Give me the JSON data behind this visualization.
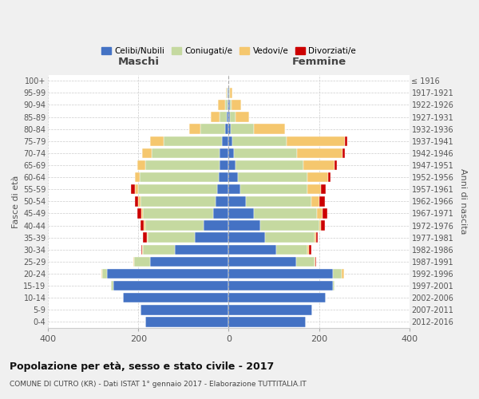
{
  "age_groups": [
    "0-4",
    "5-9",
    "10-14",
    "15-19",
    "20-24",
    "25-29",
    "30-34",
    "35-39",
    "40-44",
    "45-49",
    "50-54",
    "55-59",
    "60-64",
    "65-69",
    "70-74",
    "75-79",
    "80-84",
    "85-89",
    "90-94",
    "95-99",
    "100+"
  ],
  "birth_years": [
    "2012-2016",
    "2007-2011",
    "2002-2006",
    "1997-2001",
    "1992-1996",
    "1987-1991",
    "1982-1986",
    "1977-1981",
    "1972-1976",
    "1967-1971",
    "1962-1966",
    "1957-1961",
    "1952-1956",
    "1947-1951",
    "1942-1946",
    "1937-1941",
    "1932-1936",
    "1927-1931",
    "1922-1926",
    "1917-1921",
    "≤ 1916"
  ],
  "maschi_celibe": [
    185,
    195,
    235,
    255,
    270,
    175,
    120,
    75,
    55,
    35,
    30,
    25,
    22,
    20,
    20,
    15,
    8,
    5,
    3,
    2,
    0
  ],
  "maschi_coniugati": [
    0,
    0,
    0,
    5,
    10,
    35,
    70,
    105,
    130,
    155,
    165,
    175,
    175,
    165,
    150,
    130,
    55,
    15,
    5,
    2,
    0
  ],
  "maschi_vedovi": [
    0,
    0,
    0,
    0,
    2,
    2,
    2,
    2,
    3,
    4,
    5,
    8,
    10,
    18,
    22,
    30,
    25,
    20,
    15,
    2,
    0
  ],
  "maschi_divorziati": [
    0,
    0,
    0,
    0,
    0,
    0,
    2,
    8,
    8,
    8,
    8,
    8,
    0,
    0,
    0,
    0,
    0,
    0,
    0,
    0,
    0
  ],
  "femmine_celibe": [
    170,
    185,
    215,
    230,
    230,
    150,
    105,
    80,
    70,
    55,
    38,
    25,
    20,
    15,
    12,
    8,
    5,
    3,
    2,
    1,
    0
  ],
  "femmine_coniugate": [
    0,
    0,
    0,
    5,
    20,
    40,
    70,
    110,
    130,
    140,
    145,
    150,
    155,
    150,
    140,
    120,
    50,
    12,
    5,
    2,
    0
  ],
  "femmine_vedove": [
    0,
    0,
    0,
    0,
    5,
    2,
    3,
    3,
    5,
    12,
    18,
    30,
    45,
    70,
    100,
    130,
    70,
    30,
    20,
    5,
    0
  ],
  "femmine_divorziate": [
    0,
    0,
    0,
    0,
    0,
    2,
    5,
    5,
    8,
    12,
    12,
    10,
    5,
    5,
    5,
    5,
    0,
    0,
    0,
    0,
    0
  ],
  "color_celibe": "#4472c4",
  "color_coniugati": "#c5d9a0",
  "color_vedovi": "#f5c76e",
  "color_divorziati": "#cc0000",
  "title": "Popolazione per età, sesso e stato civile - 2017",
  "subtitle": "COMUNE DI CUTRO (KR) - Dati ISTAT 1° gennaio 2017 - Elaborazione TUTTITALIA.IT",
  "ylabel": "Fasce di età",
  "ylabel_right": "Anni di nascita",
  "xlabel_left": "Maschi",
  "xlabel_right": "Femmine",
  "xlim": 400,
  "background_color": "#f0f0f0",
  "bar_bg_color": "#ffffff"
}
